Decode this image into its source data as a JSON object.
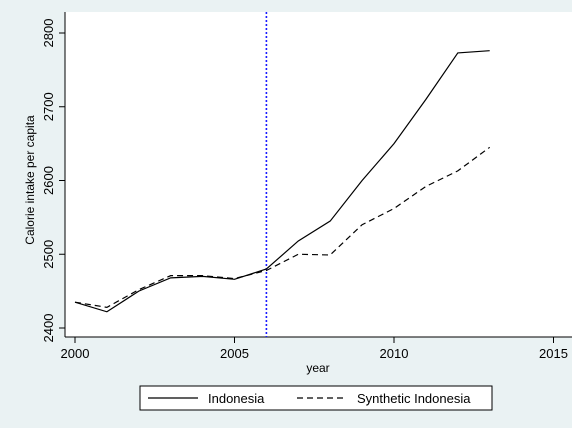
{
  "chart_data": {
    "type": "line",
    "xlabel": "year",
    "ylabel": "Calorie intake per capita",
    "xlim": [
      2000,
      2015
    ],
    "ylim": [
      2400,
      2800
    ],
    "x_ticks": [
      2000,
      2005,
      2010,
      2015
    ],
    "y_ticks": [
      2400,
      2500,
      2600,
      2700,
      2800
    ],
    "grid": false,
    "legend_position": "bottom",
    "reference_line": {
      "x": 2006,
      "style": "dotted",
      "color": "#1a1aff"
    },
    "x": [
      2000,
      2001,
      2002,
      2003,
      2004,
      2005,
      2006,
      2007,
      2008,
      2009,
      2010,
      2011,
      2012,
      2013
    ],
    "series": [
      {
        "name": "Indonesia",
        "style": "solid",
        "color": "#000000",
        "values": [
          2435,
          2422,
          2450,
          2468,
          2470,
          2466,
          2480,
          2518,
          2545,
          2600,
          2650,
          2710,
          2773,
          2776
        ]
      },
      {
        "name": "Synthetic Indonesia",
        "style": "dashed",
        "color": "#000000",
        "values": [
          2435,
          2428,
          2452,
          2471,
          2471,
          2467,
          2478,
          2500,
          2499,
          2540,
          2562,
          2592,
          2613,
          2645
        ]
      }
    ]
  }
}
